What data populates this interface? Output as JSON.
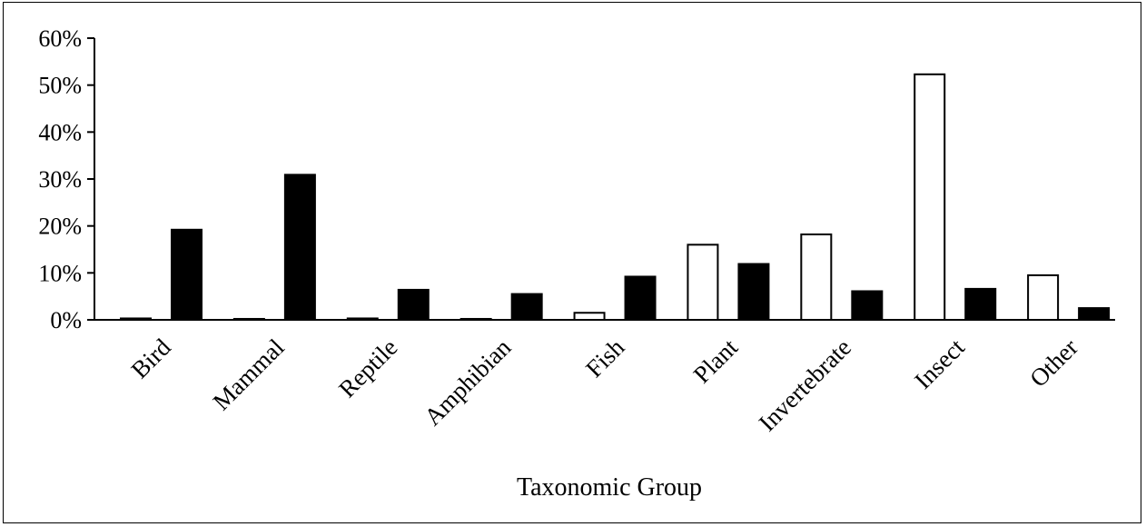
{
  "chart_data": {
    "type": "bar",
    "title": "",
    "xlabel": "Taxonomic Group",
    "ylabel": "",
    "ylim": [
      0,
      60
    ],
    "yticks": [
      "0%",
      "10%",
      "20%",
      "30%",
      "40%",
      "50%",
      "60%"
    ],
    "categories": [
      "Bird",
      "Mammal",
      "Reptile",
      "Amphibian",
      "Fish",
      "Plant",
      "Invertebrate",
      "Insect",
      "Other"
    ],
    "series": [
      {
        "values": [
          0.3,
          0.2,
          0.3,
          0.2,
          1.5,
          16.0,
          18.2,
          52.3,
          9.5
        ],
        "fill": "#ffffff"
      },
      {
        "values": [
          19.2,
          30.9,
          6.4,
          5.5,
          9.2,
          11.9,
          6.1,
          6.6,
          2.5
        ],
        "fill": "#000000"
      }
    ],
    "grid": false,
    "legend": "none"
  }
}
